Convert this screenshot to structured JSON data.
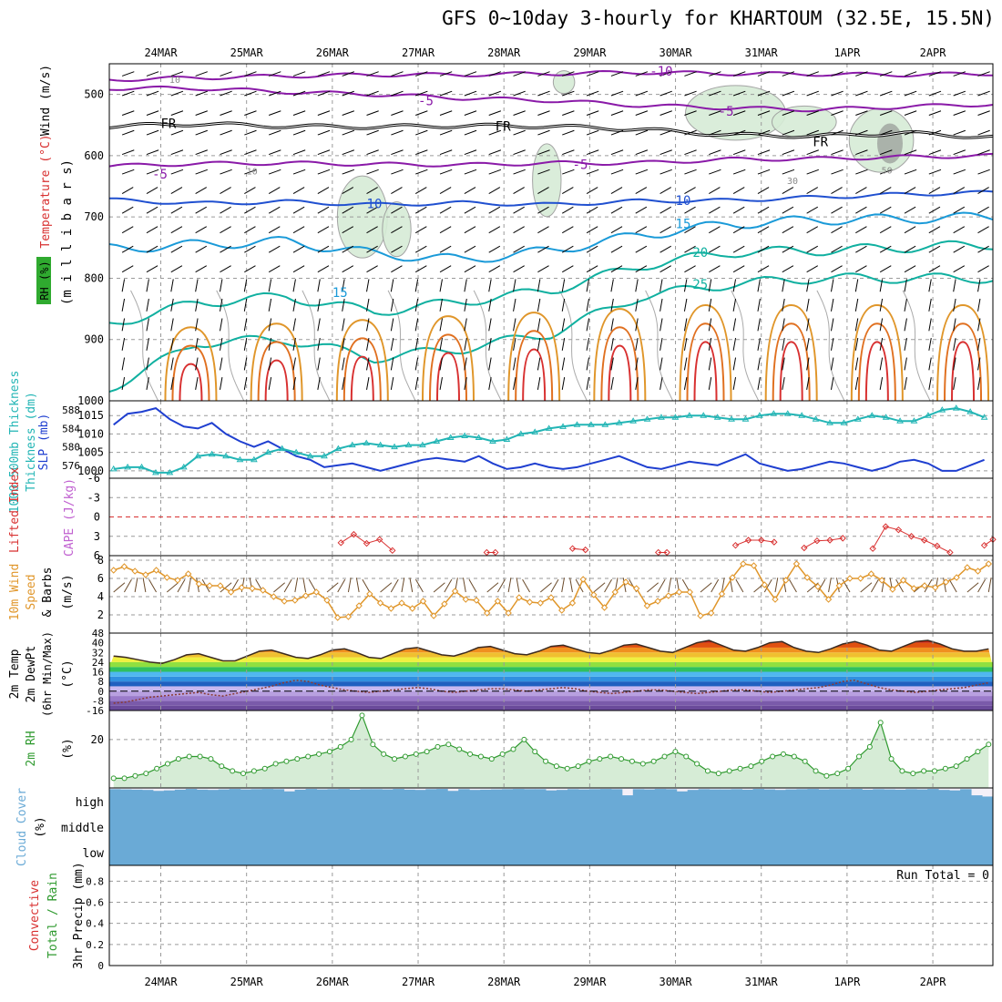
{
  "title": "GFS 0~10day 3-hourly for KHARTOUM (32.5E, 15.5N)",
  "date_labels": [
    "24MAR",
    "25MAR",
    "26MAR",
    "27MAR",
    "28MAR",
    "29MAR",
    "30MAR",
    "31MAR",
    "1APR",
    "2APR"
  ],
  "colors": {
    "frame": "#000000",
    "grid": "#9a9a9a",
    "slp": "#1f3fd0",
    "thickness": "#22b5b5",
    "lifted": "#d83030",
    "cape": "#c060d0",
    "wind10": "#e0962a",
    "rh2m": "#2f9a2f",
    "cloud": "#6aaad6",
    "precip_total": "#2f9a2f",
    "precip_conv": "#d83030"
  },
  "chart_data": [
    {
      "type": "line",
      "panel": "upper-air cross section",
      "ylabel": [
        "Wind (m/s)",
        "Temperature (°C)",
        "RH (%)",
        "(m i l l i b a r s)"
      ],
      "yticks": [
        500,
        600,
        700,
        800,
        900,
        1000
      ],
      "ylim": [
        1000,
        450
      ],
      "contour_labels": [
        {
          "text": "-10",
          "x": 6.3,
          "p": 462,
          "color": "#8a1aa8"
        },
        {
          "text": "-5",
          "x": 3.6,
          "p": 510,
          "color": "#8a1aa8"
        },
        {
          "text": "-5",
          "x": 7.1,
          "p": 527,
          "color": "#8a1aa8"
        },
        {
          "text": "FR",
          "x": 0.6,
          "p": 547,
          "color": "#000000"
        },
        {
          "text": "FR",
          "x": 4.5,
          "p": 552,
          "color": "#000000"
        },
        {
          "text": "FR",
          "x": 8.2,
          "p": 577,
          "color": "#000000"
        },
        {
          "text": "-5",
          "x": 0.5,
          "p": 630,
          "color": "#8a1aa8"
        },
        {
          "text": "-5",
          "x": 5.4,
          "p": 614,
          "color": "#8a1aa8"
        },
        {
          "text": "10",
          "x": 3.0,
          "p": 678,
          "color": "#2050d0"
        },
        {
          "text": "10",
          "x": 6.6,
          "p": 673,
          "color": "#2050d0"
        },
        {
          "text": "15",
          "x": 6.6,
          "p": 711,
          "color": "#1a9ad8"
        },
        {
          "text": "15",
          "x": 2.6,
          "p": 823,
          "color": "#1a9ad8"
        },
        {
          "text": "20",
          "x": 6.8,
          "p": 758,
          "color": "#10b0a0"
        },
        {
          "text": "25",
          "x": 6.8,
          "p": 810,
          "color": "#10b0a0"
        }
      ],
      "rh_labels": [
        {
          "text": "10",
          "x": 0.7,
          "p": 475
        },
        {
          "text": "10",
          "x": 1.6,
          "p": 625
        },
        {
          "text": "30",
          "x": 7.9,
          "p": 640
        },
        {
          "text": "50",
          "x": 9.0,
          "p": 623
        }
      ],
      "isotherms": [
        {
          "label": "-10",
          "color": "#8a1aa8",
          "p": [
            476,
            473,
            470,
            468,
            468,
            466,
            464,
            466,
            467,
            468,
            466
          ]
        },
        {
          "label": "-5",
          "color": "#8a1aa8",
          "p": [
            490,
            490,
            496,
            500,
            506,
            510,
            518,
            522,
            525,
            520,
            516
          ]
        },
        {
          "label": "FR",
          "color": "#000000",
          "p": [
            552,
            548,
            552,
            553,
            551,
            552,
            557,
            566,
            568,
            563,
            570
          ]
        },
        {
          "label": "-5",
          "color": "#8a1aa8",
          "p": [
            617,
            613,
            612,
            614,
            615,
            612,
            612,
            606,
            605,
            602,
            600
          ]
        },
        {
          "label": "10",
          "color": "#2050d0",
          "p": [
            672,
            678,
            675,
            680,
            677,
            680,
            674,
            673,
            668,
            663,
            660
          ]
        },
        {
          "label": "15",
          "color": "#1a9ad8",
          "p": [
            752,
            745,
            740,
            760,
            770,
            755,
            730,
            712,
            705,
            703,
            700
          ]
        },
        {
          "label": "20",
          "color": "#10b0a0",
          "p": [
            875,
            840,
            830,
            855,
            838,
            820,
            780,
            758,
            755,
            750,
            745
          ]
        },
        {
          "label": "25",
          "color": "#10b0a0",
          "p": [
            980,
            905,
            900,
            930,
            915,
            890,
            830,
            810,
            800,
            800,
            800
          ]
        }
      ]
    },
    {
      "type": "line",
      "panel": "slp-thickness",
      "ylabel": [
        "1000-500mb Thickness (dm)",
        "SLP (mb)"
      ],
      "thickness_ticks": [
        588,
        584,
        580,
        576
      ],
      "slp_ticks": [
        1015,
        1010,
        1005,
        1000
      ],
      "ylim_slp": [
        998,
        1019
      ],
      "series": [
        {
          "name": "SLP",
          "values": [
            1012.5,
            1015.5,
            1016,
            1017,
            1014,
            1012,
            1011.5,
            1013,
            1010,
            1008,
            1006.5,
            1008,
            1006,
            1004,
            1003,
            1001,
            1001.5,
            1002,
            1001,
            1000,
            1001,
            1002,
            1003,
            1003.5,
            1003,
            1002.5,
            1004,
            1002,
            1000.5,
            1001,
            1002,
            1001,
            1000.5,
            1001,
            1002,
            1003,
            1004,
            1002.5,
            1001,
            1000.5,
            1001.5,
            1002.5,
            1002,
            1001.5,
            1003,
            1004.5,
            1002,
            1001,
            1000,
            1000.5,
            1001.5,
            1002.5,
            1002,
            1001,
            1000,
            1001,
            1002.5,
            1003,
            1002,
            1000,
            1000,
            1001.5,
            1003
          ]
        },
        {
          "name": "Thickness",
          "values": [
            1000.5,
            1001,
            1001,
            999.5,
            999.5,
            1001,
            1004,
            1004.5,
            1004,
            1003,
            1003,
            1005,
            1006,
            1005,
            1004,
            1004,
            1006,
            1007,
            1007.5,
            1007,
            1006.5,
            1007,
            1007,
            1008,
            1009,
            1009.5,
            1009,
            1008,
            1008.5,
            1010,
            1010.5,
            1011.5,
            1012,
            1012.5,
            1012.5,
            1012.5,
            1013,
            1013.5,
            1014,
            1014.5,
            1014.5,
            1015,
            1015,
            1014.5,
            1014,
            1014,
            1015,
            1015.5,
            1015.5,
            1015,
            1014,
            1013,
            1013,
            1014,
            1015,
            1014.5,
            1013.5,
            1013.5,
            1015,
            1016.5,
            1017,
            1016,
            1014.5
          ]
        }
      ]
    },
    {
      "type": "line",
      "panel": "cape-lifted",
      "ylabel": [
        "Lifted Index",
        "CAPE (J/kg)"
      ],
      "yticks": [
        "-6",
        "-3",
        "0",
        "3",
        "6"
      ],
      "ylim": [
        -6,
        6
      ],
      "zero_line": 0,
      "segments": [
        {
          "x": [
            2.7,
            2.85,
            3.0,
            3.15,
            3.3
          ],
          "y": [
            4.0,
            2.7,
            4.1,
            3.5,
            5.2
          ]
        },
        {
          "x": [
            4.4,
            4.5
          ],
          "y": [
            5.5,
            5.5
          ]
        },
        {
          "x": [
            5.4,
            5.55
          ],
          "y": [
            4.9,
            5.1
          ]
        },
        {
          "x": [
            6.4,
            6.5
          ],
          "y": [
            5.5,
            5.5
          ]
        },
        {
          "x": [
            7.3,
            7.45,
            7.6,
            7.75
          ],
          "y": [
            4.4,
            3.6,
            3.6,
            3.9
          ]
        },
        {
          "x": [
            8.1,
            8.25,
            8.4,
            8.55
          ],
          "y": [
            4.8,
            3.7,
            3.6,
            3.3
          ]
        },
        {
          "x": [
            8.9,
            9.05,
            9.2,
            9.35,
            9.5,
            9.65,
            9.8
          ],
          "y": [
            4.9,
            1.5,
            2.0,
            3.0,
            3.6,
            4.5,
            5.5
          ]
        },
        {
          "x": [
            10.2,
            10.3
          ],
          "y": [
            4.4,
            3.5
          ]
        }
      ]
    },
    {
      "type": "line",
      "panel": "10m-wind",
      "ylabel": [
        "10m Wind Speed (m/s)",
        "& Barbs"
      ],
      "yticks": [
        2,
        4,
        6,
        8
      ],
      "ylim": [
        0,
        8.5
      ],
      "series": [
        {
          "name": "10m Wind Speed",
          "values": [
            6.9,
            7.3,
            6.8,
            6.4,
            6.9,
            6.1,
            5.8,
            6.5,
            5.4,
            5.2,
            5.2,
            4.5,
            5.0,
            4.9,
            4.7,
            4.0,
            3.5,
            3.6,
            4.1,
            4.5,
            3.6,
            1.7,
            1.8,
            3.0,
            4.3,
            3.3,
            2.7,
            3.3,
            2.7,
            3.5,
            1.9,
            3.2,
            4.6,
            3.7,
            3.6,
            2.2,
            3.5,
            2.2,
            3.9,
            3.4,
            3.3,
            3.9,
            2.5,
            3.3,
            5.9,
            4.2,
            2.8,
            4.5,
            5.6,
            4.9,
            3.0,
            3.5,
            4.1,
            4.5,
            4.5,
            1.9,
            2.2,
            4.3,
            6.1,
            7.6,
            7.4,
            5.3,
            3.7,
            5.8,
            7.6,
            6.1,
            5.1,
            3.7,
            5.2,
            6.0,
            6.0,
            6.5,
            5.8,
            4.8,
            5.8,
            4.9,
            5.2,
            5.0,
            5.6,
            6.1,
            7.2,
            6.8,
            7.6
          ]
        }
      ]
    },
    {
      "type": "area",
      "panel": "2m-temperature",
      "ylabel": [
        "2m Temp",
        "2m DewPt",
        "(6hr Min/Max)",
        "(°C)"
      ],
      "yticks": [
        48,
        40,
        32,
        24,
        16,
        8,
        0,
        -8,
        -16
      ],
      "ylim": [
        -16,
        48
      ],
      "series": [
        {
          "name": "2m Temp",
          "values": [
            29,
            28,
            26,
            24,
            23,
            26,
            30,
            31,
            28,
            25,
            25,
            29,
            33,
            34,
            31,
            28,
            27,
            30,
            34,
            35,
            32,
            28,
            27,
            31,
            35,
            36,
            33,
            30,
            29,
            32,
            36,
            37,
            34,
            31,
            30,
            33,
            37,
            38,
            35,
            32,
            31,
            34,
            38,
            39,
            36,
            33,
            32,
            36,
            40,
            42,
            38,
            34,
            33,
            36,
            40,
            41,
            36,
            33,
            32,
            35,
            39,
            41,
            38,
            34,
            33,
            37,
            41,
            42,
            39,
            35,
            33,
            33,
            35
          ]
        },
        {
          "name": "2m DewPt",
          "values": [
            -10,
            -9,
            -7,
            -5,
            -4,
            -3,
            -2,
            -1,
            -3,
            -4,
            -2,
            0,
            2,
            4,
            7,
            9,
            8,
            5,
            3,
            1,
            0,
            -1,
            0,
            1,
            2,
            3,
            2,
            0,
            -1,
            0,
            1,
            2,
            2,
            1,
            0,
            1,
            2,
            3,
            2,
            0,
            -1,
            -2,
            -1,
            0,
            1,
            1,
            0,
            -1,
            -2,
            -1,
            0,
            1,
            1,
            0,
            -1,
            0,
            1,
            2,
            3,
            5,
            8,
            9,
            6,
            3,
            1,
            0,
            -1,
            0,
            1,
            2,
            3,
            5,
            7
          ]
        }
      ]
    },
    {
      "type": "area",
      "panel": "2m-rh",
      "ylabel": [
        "2m RH",
        "(%)"
      ],
      "yticks": [
        20
      ],
      "ylim": [
        0,
        32
      ],
      "series": [
        {
          "name": "2m RH",
          "values": [
            4,
            4,
            5,
            6,
            8,
            10,
            12,
            13,
            13,
            12,
            9,
            7,
            6,
            7,
            8,
            10,
            11,
            12,
            13,
            14,
            15,
            17,
            20,
            30,
            18,
            14,
            12,
            13,
            14,
            15,
            17,
            18,
            16,
            14,
            13,
            12,
            14,
            16,
            20,
            15,
            11,
            9,
            8,
            9,
            11,
            12,
            13,
            12,
            11,
            10,
            11,
            13,
            15,
            13,
            10,
            7,
            6,
            7,
            8,
            9,
            11,
            13,
            14,
            13,
            11,
            7,
            5,
            6,
            8,
            13,
            17,
            27,
            12,
            7,
            6,
            7,
            7,
            8,
            9,
            12,
            15,
            18
          ]
        }
      ]
    },
    {
      "type": "bar",
      "panel": "cloud-cover",
      "ylabel": [
        "Cloud Cover",
        "(%)"
      ],
      "levels": [
        "high",
        "middle",
        "low"
      ],
      "ylim": [
        0,
        100
      ],
      "series": [
        {
          "name": "high",
          "values": [
            95,
            94,
            93,
            92,
            88,
            90,
            93,
            96,
            93,
            92,
            94,
            96,
            94,
            95,
            96,
            95,
            86,
            93,
            96,
            94,
            95,
            96,
            93,
            95,
            95,
            94,
            96,
            93,
            92,
            95,
            96,
            88,
            95,
            92,
            93,
            94,
            95,
            96,
            95,
            95,
            90,
            92,
            95,
            94,
            95,
            96,
            95,
            70,
            95,
            94,
            96,
            95,
            86,
            92,
            95,
            94,
            94,
            95,
            93,
            96,
            94,
            92,
            94,
            95,
            96,
            94,
            95,
            95,
            96,
            93,
            95,
            94,
            93,
            95,
            94,
            96,
            92,
            90,
            95,
            70,
            65
          ]
        },
        {
          "name": "middle",
          "values": []
        },
        {
          "name": "low",
          "values": []
        }
      ]
    },
    {
      "type": "line",
      "panel": "precip",
      "ylabel": [
        "3hr Precip (mm)",
        "Total / Rain",
        "Convective"
      ],
      "yticks": [
        "0",
        "0.2",
        "0.4",
        "0.6",
        "0.8"
      ],
      "ylim": [
        0,
        0.95
      ],
      "run_total": "Run Total = 0",
      "series": [
        {
          "name": "Total / Rain",
          "values": []
        },
        {
          "name": "Convective",
          "values": []
        }
      ]
    }
  ]
}
